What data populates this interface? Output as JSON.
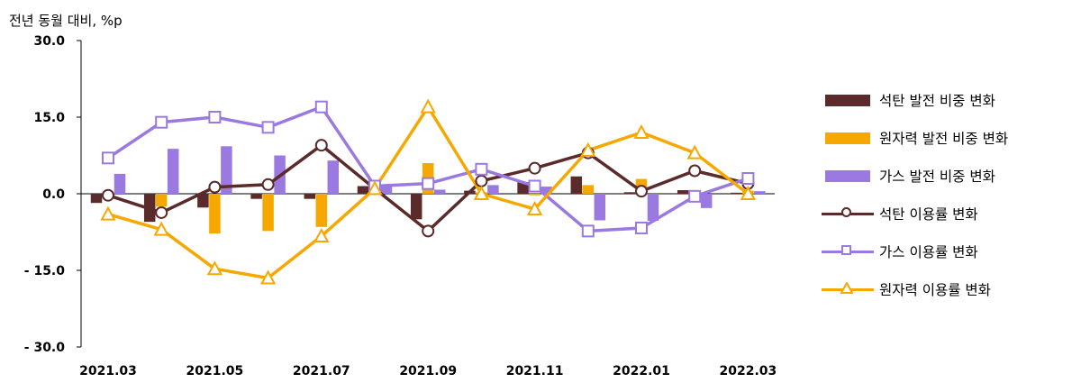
{
  "chart_data": {
    "type": "bar",
    "ylabel": "전년 동월 대비, %p",
    "ylim": [
      -30,
      30
    ],
    "yticks": [
      30,
      15,
      0,
      -15,
      -30
    ],
    "ytick_labels": [
      "30.0",
      "15.0",
      "0.0",
      "- 15.0",
      "- 30.0"
    ],
    "categories": [
      "2021.03",
      "2021.04",
      "2021.05",
      "2021.06",
      "2021.07",
      "2021.08",
      "2021.09",
      "2021.10",
      "2021.11",
      "2021.12",
      "2022.01",
      "2022.02",
      "2022.03"
    ],
    "xtick_labels": [
      "2021.03",
      "",
      "2021.05",
      "",
      "2021.07",
      "",
      "2021.09",
      "",
      "2021.11",
      "",
      "2022.01",
      "",
      "2022.03"
    ],
    "bar_series": [
      {
        "name": "석탄 발전 비중 변화",
        "color": "#5b2a2a",
        "values": [
          -1.8,
          -5.5,
          -2.7,
          -1.0,
          -1.0,
          1.5,
          -5.0,
          0.6,
          2.3,
          3.4,
          0.3,
          0.7,
          0.2
        ]
      },
      {
        "name": "원자력 발전 비중 변화",
        "color": "#f7a800",
        "values": [
          -0.8,
          -2.5,
          -7.8,
          -7.3,
          -6.5,
          0.6,
          6.0,
          0.3,
          -0.3,
          1.7,
          2.9,
          -0.5,
          0.6
        ]
      },
      {
        "name": "가스 발전 비중 변화",
        "color": "#9a7ae0",
        "values": [
          3.9,
          8.8,
          9.3,
          7.5,
          6.5,
          1.6,
          0.8,
          1.7,
          1.4,
          -5.2,
          -5.3,
          -2.8,
          0.5
        ]
      }
    ],
    "line_series": [
      {
        "name": "석탄 이용률 변화",
        "color": "#5b2a2a",
        "marker": "circle",
        "values": [
          -0.3,
          -3.7,
          1.3,
          1.8,
          9.5,
          1.0,
          -7.3,
          2.5,
          5.0,
          8.0,
          0.5,
          4.5,
          2.0
        ]
      },
      {
        "name": "가스 이용률 변화",
        "color": "#9a7ae0",
        "marker": "square",
        "values": [
          7.0,
          14.0,
          15.0,
          13.0,
          17.0,
          1.5,
          2.0,
          4.8,
          1.5,
          -7.3,
          -6.7,
          -0.5,
          3.0
        ]
      },
      {
        "name": "원자력 이용률 변화",
        "color": "#f7a800",
        "marker": "triangle",
        "values": [
          -4.0,
          -7.0,
          -14.7,
          -16.5,
          -8.3,
          1.0,
          17.0,
          0.0,
          -3.0,
          8.5,
          12.0,
          8.0,
          0.0
        ]
      }
    ],
    "grid": false,
    "legend_position": "right"
  }
}
